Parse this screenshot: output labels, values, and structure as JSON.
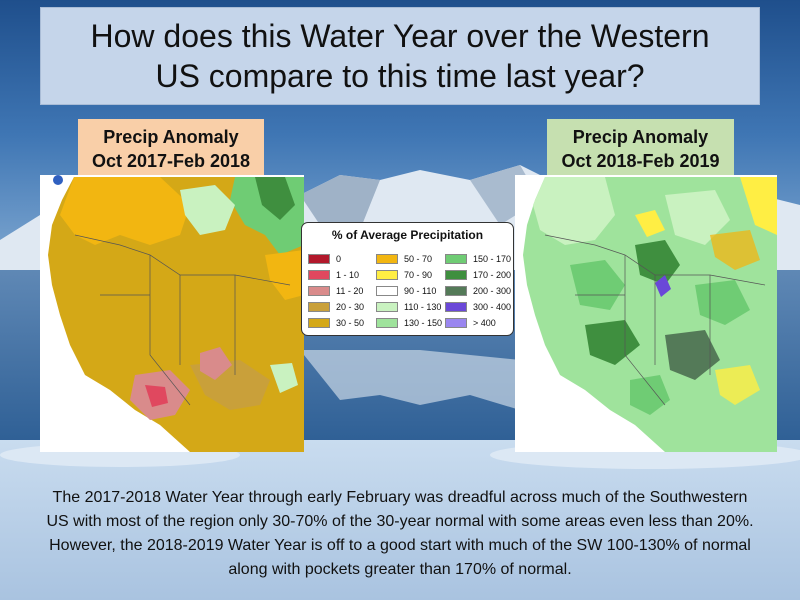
{
  "title": "How does this Water Year over the Western US compare to this time last year?",
  "panels": {
    "left": {
      "label_line1": "Precip Anomaly",
      "label_line2": "Oct 2017-Feb 2018"
    },
    "right": {
      "label_line1": "Precip Anomaly",
      "label_line2": "Oct 2018-Feb 2019"
    }
  },
  "legend": {
    "title": "% of Average Precipitation",
    "items": [
      {
        "label": "0",
        "color": "#b2182b"
      },
      {
        "label": "1 - 10",
        "color": "#e0485f"
      },
      {
        "label": "11 - 20",
        "color": "#d98b8b"
      },
      {
        "label": "20 - 30",
        "color": "#c9a03a"
      },
      {
        "label": "30 - 50",
        "color": "#d4a817"
      },
      {
        "label": "50 - 70",
        "color": "#f2b611"
      },
      {
        "label": "70 - 90",
        "color": "#ffee44"
      },
      {
        "label": "90 - 110",
        "color": "#ffffff"
      },
      {
        "label": "110 - 130",
        "color": "#c9f2c0"
      },
      {
        "label": "130 - 150",
        "color": "#9fe39c"
      },
      {
        "label": "150 - 170",
        "color": "#6fcc74"
      },
      {
        "label": "170 - 200",
        "color": "#3f8f3f"
      },
      {
        "label": "200 - 300",
        "color": "#547a58"
      },
      {
        "label": "300 - 400",
        "color": "#6a48d8"
      },
      {
        "label": "> 400",
        "color": "#9a86f0"
      }
    ]
  },
  "body_text": "The 2017-2018 Water Year through early February was dreadful across much of the Southwestern US with most of the region only 30-70% of the 30-year normal with some areas even less than 20%. However, the 2018-2019 Water Year is off to a good start with much of the SW 100-130% of normal along with pockets greater than 170% of normal."
}
